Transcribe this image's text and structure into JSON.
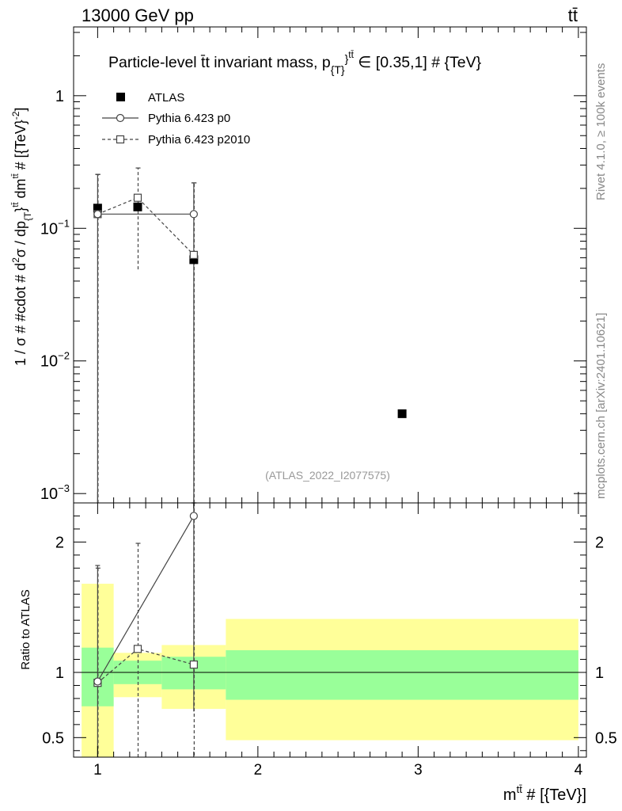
{
  "header": {
    "left": "13000 GeV pp",
    "right": "tt̄"
  },
  "side_labels": {
    "rivet": "Rivet 4.1.0, ≥ 100k events",
    "mcplots": "mcplots.cern.ch [arXiv:2401.10621]"
  },
  "chart_data": [
    {
      "type": "scatter",
      "title": "Particle-level t̄t invariant mass, p_{T}^{tt̄} ∈ [0.35,1] # {TeV}",
      "title_main": "Particle-level t̄t invariant mass, p",
      "title_sub": "{T}",
      "title_sup": "}",
      "title_sup2": "tt̄",
      "title_tail": " ∈ [0.35,1] # {TeV}",
      "ylabel": "1 / σ # #cdot # d²σ / dp_{T}^{tt̄} dm^{tt̄} # [{TeV}^{-2}]",
      "ylabel_parts": {
        "a": "1 / σ # #cdot # d",
        "b": "2",
        "c": "σ / dp",
        "d": "{T",
        "e": "}",
        "f": "tt̄",
        "g": " dm",
        "h": "tt̄",
        "i": " # [{TeV}",
        "j": "-2",
        "k": "]"
      },
      "yscale": "log",
      "ylim": [
        0.00085,
        3.3
      ],
      "xlim": [
        0.85,
        4.05
      ],
      "y_ticks": [
        {
          "value": 1,
          "label": "1"
        },
        {
          "value": 0.1,
          "label": "10",
          "exp": "−1"
        },
        {
          "value": 0.01,
          "label": "10",
          "exp": "−2"
        },
        {
          "value": 0.001,
          "label": "10",
          "exp": "−3"
        }
      ],
      "watermark": "(ATLAS_2022_I2077575)",
      "legend_placement": "top-left",
      "series": [
        {
          "name": "ATLAS",
          "marker": "filled-square",
          "points": [
            {
              "x": 1.0,
              "y": 0.142
            },
            {
              "x": 1.25,
              "y": 0.145
            },
            {
              "x": 1.6,
              "y": 0.058
            },
            {
              "x": 2.9,
              "y": 0.004
            }
          ]
        },
        {
          "name": "Pythia 6.423 p0",
          "marker": "open-circle",
          "line": "solid",
          "x_edges": [
            1.0,
            1.6
          ],
          "points": [
            {
              "x": 1.0,
              "y": 0.128,
              "ylo": 0.0008,
              "yhi": 0.255
            },
            {
              "x": 1.6,
              "y": 0.128,
              "ylo": 0.0008,
              "yhi": 0.22
            }
          ]
        },
        {
          "name": "Pythia 6.423 p2010",
          "marker": "open-square",
          "line": "dashed",
          "points": [
            {
              "x": 1.0,
              "y": 0.128,
              "ylo": 0.0008,
              "yhi": 0.255
            },
            {
              "x": 1.25,
              "y": 0.17,
              "ylo": 0.049,
              "yhi": 0.285
            },
            {
              "x": 1.6,
              "y": 0.063,
              "ylo": 0.0008,
              "yhi": 0.22
            }
          ]
        }
      ]
    },
    {
      "type": "scatter",
      "ylabel": "Ratio to ATLAS",
      "xlabel": "m^{tt̄} # [{TeV}]",
      "xlabel_parts": {
        "a": "m",
        "b": "tt̄",
        "c": " # [{TeV}]"
      },
      "ylim": [
        0.35,
        2.3
      ],
      "xlim": [
        0.85,
        4.05
      ],
      "x_ticks": [
        1,
        2,
        3,
        4
      ],
      "y_ticks": [
        {
          "value": 0.5,
          "label": "0.5"
        },
        {
          "value": 1,
          "label": "1"
        },
        {
          "value": 2,
          "label": "2"
        }
      ],
      "bands": [
        {
          "x0": 0.9,
          "x1": 1.1,
          "inner": [
            0.74,
            1.19
          ],
          "outer": [
            0.35,
            1.68
          ]
        },
        {
          "x0": 1.1,
          "x1": 1.4,
          "inner": [
            0.91,
            1.09
          ],
          "outer": [
            0.81,
            1.15
          ]
        },
        {
          "x0": 1.4,
          "x1": 1.8,
          "inner": [
            0.87,
            1.12
          ],
          "outer": [
            0.72,
            1.21
          ]
        },
        {
          "x0": 1.8,
          "x1": 4.0,
          "inner": [
            0.79,
            1.17
          ],
          "outer": [
            0.48,
            1.41
          ]
        }
      ],
      "band_colors": {
        "inner": "#99ff99",
        "outer": "#ffff99"
      },
      "series": [
        {
          "name": "Pythia 6.423 p0",
          "marker": "open-circle",
          "line": "solid",
          "points": [
            {
              "x": 1.0,
              "y": 0.93,
              "ylo": 0.35,
              "yhi": 1.82
            },
            {
              "x": 1.6,
              "y": 2.2,
              "ylo": 0.7,
              "yhi": 2.3
            }
          ]
        },
        {
          "name": "Pythia 6.423 p2010",
          "marker": "open-square",
          "line": "dashed",
          "points": [
            {
              "x": 1.0,
              "y": 0.92,
              "ylo": 0.35,
              "yhi": 1.8
            },
            {
              "x": 1.25,
              "y": 1.18,
              "ylo": 0.35,
              "yhi": 1.99
            },
            {
              "x": 1.6,
              "y": 1.06,
              "ylo": 0.35,
              "yhi": 2.3
            }
          ]
        }
      ]
    }
  ]
}
